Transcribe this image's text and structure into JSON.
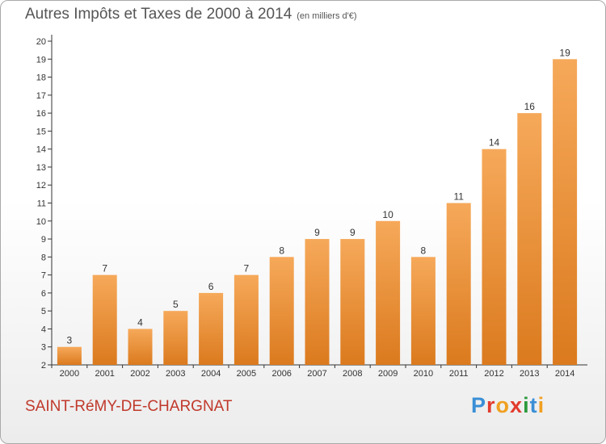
{
  "title": "Autres Impôts et Taxes de 2000 à 2014",
  "subtitle": "(en milliers d'€)",
  "commune": "SAINT-RéMY-DE-CHARGNAT",
  "logo": {
    "letters": [
      "P",
      "r",
      "o",
      "x",
      "i",
      "t",
      "i"
    ],
    "colors": [
      "#3a8fd6",
      "#e23b2e",
      "#f0a020",
      "#e23b2e",
      "#2b9a3c",
      "#3a8fd6",
      "#f0a020"
    ]
  },
  "colors": {
    "bar_top": "#f6a95a",
    "bar_bottom": "#db7a1e",
    "axis": "#333333",
    "text": "#333333"
  },
  "chart_data": {
    "type": "bar",
    "categories": [
      "2000",
      "2001",
      "2002",
      "2003",
      "2004",
      "2005",
      "2006",
      "2007",
      "2008",
      "2009",
      "2010",
      "2011",
      "2012",
      "2013",
      "2014"
    ],
    "values": [
      3,
      7,
      4,
      5,
      6,
      7,
      8,
      9,
      9,
      10,
      8,
      11,
      14,
      16,
      19
    ],
    "ylim": [
      2,
      20
    ],
    "yticks": [
      2,
      3,
      4,
      5,
      6,
      7,
      8,
      9,
      10,
      11,
      12,
      13,
      14,
      15,
      16,
      17,
      18,
      19,
      20
    ],
    "grid": false,
    "data_labels": true
  }
}
